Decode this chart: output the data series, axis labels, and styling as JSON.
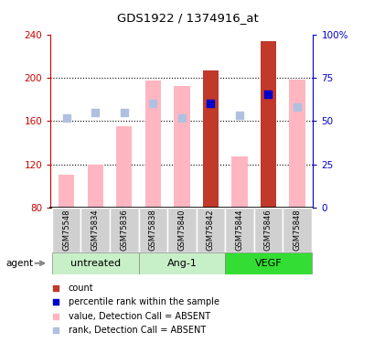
{
  "title": "GDS1922 / 1374916_at",
  "samples": [
    "GSM75548",
    "GSM75834",
    "GSM75836",
    "GSM75838",
    "GSM75840",
    "GSM75842",
    "GSM75844",
    "GSM75846",
    "GSM75848"
  ],
  "bar_values": [
    110,
    120,
    155,
    197,
    192,
    207,
    127,
    234,
    198
  ],
  "bar_colors": [
    "#FFB6C1",
    "#FFB6C1",
    "#FFB6C1",
    "#FFB6C1",
    "#FFB6C1",
    "#C0392B",
    "#FFB6C1",
    "#C0392B",
    "#FFB6C1"
  ],
  "rank_dots": [
    163,
    168,
    168,
    176,
    163,
    176,
    165,
    185,
    173
  ],
  "rank_colors": [
    "#B0C0E0",
    "#B0C0E0",
    "#B0C0E0",
    "#B0C0E0",
    "#B0C0E0",
    "#0000CD",
    "#B0C0E0",
    "#0000CD",
    "#B0C0E0"
  ],
  "ylim_left": [
    80,
    240
  ],
  "ylim_right": [
    0,
    100
  ],
  "yticks_left": [
    80,
    120,
    160,
    200,
    240
  ],
  "yticks_right": [
    0,
    25,
    50,
    75,
    100
  ],
  "ytick_labels_right": [
    "0",
    "25",
    "50",
    "75",
    "100%"
  ],
  "left_axis_color": "#CC0000",
  "right_axis_color": "#0000CC",
  "bar_width": 0.55,
  "dot_size": 35,
  "group_labels": [
    "untreated",
    "Ang-1",
    "VEGF"
  ],
  "group_colors": [
    "#C8F0C8",
    "#C8F0C8",
    "#33DD33"
  ],
  "group_ranges": [
    [
      0,
      3
    ],
    [
      3,
      6
    ],
    [
      6,
      9
    ]
  ],
  "legend_items": [
    {
      "color": "#C0392B",
      "label": "count"
    },
    {
      "color": "#0000CD",
      "label": "percentile rank within the sample"
    },
    {
      "color": "#FFB6C1",
      "label": "value, Detection Call = ABSENT"
    },
    {
      "color": "#B0C0E0",
      "label": "rank, Detection Call = ABSENT"
    }
  ]
}
